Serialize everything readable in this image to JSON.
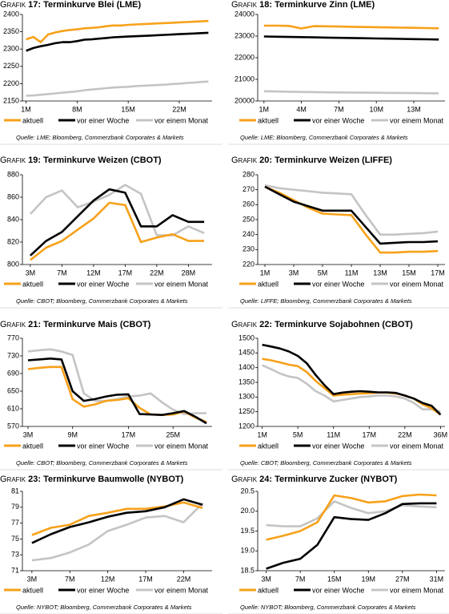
{
  "chart_data": [
    {
      "type": "line",
      "kicker": "Grafik",
      "title": "17: Terminkurve Blei (LME)",
      "source": "Quelle: LME; Bloomberg, Commerzbank Corporates & Markets",
      "categories": [
        "1M",
        null,
        null,
        null,
        null,
        null,
        null,
        "8M",
        null,
        null,
        null,
        null,
        null,
        null,
        "15M",
        null,
        null,
        null,
        null,
        null,
        null,
        "22M",
        null,
        null,
        null,
        null
      ],
      "ylim": [
        2150,
        2400
      ],
      "yticks": [
        2150,
        2200,
        2250,
        2300,
        2350,
        2400
      ],
      "series": [
        {
          "name": "aktuell",
          "color": "#f7a11a",
          "values": [
            2328,
            2335,
            2320,
            2342,
            2348,
            2352,
            2355,
            2357,
            2360,
            2361,
            2363,
            2366,
            2368,
            2368,
            2370,
            2371,
            2372,
            2373,
            2374,
            2375,
            2376,
            2377,
            2378,
            2379,
            2380,
            2381
          ]
        },
        {
          "name": "vor einer Woche",
          "color": "#000000",
          "values": [
            2295,
            2303,
            2308,
            2312,
            2317,
            2320,
            2320,
            2323,
            2327,
            2328,
            2330,
            2332,
            2334,
            2335,
            2336,
            2337,
            2338,
            2339,
            2340,
            2341,
            2342,
            2343,
            2344,
            2345,
            2346,
            2347
          ]
        },
        {
          "name": "vor einem Monat",
          "color": "#c4c4c4",
          "values": [
            2165,
            2166,
            2168,
            2170,
            2172,
            2174,
            2176,
            2178,
            2181,
            2183,
            2185,
            2187,
            2189,
            2190,
            2191,
            2193,
            2194,
            2195,
            2196,
            2197,
            2199,
            2200,
            2202,
            2203,
            2205,
            2206
          ]
        }
      ]
    },
    {
      "type": "line",
      "kicker": "Grafik",
      "title": "18: Terminkurve Zinn (LME)",
      "source": "Quelle: LME; Bloomberg, Commerzbank Corporates & Markets",
      "categories": [
        "1M",
        null,
        null,
        "4M",
        null,
        null,
        "7M",
        null,
        null,
        "10M",
        null,
        null,
        "13M",
        null,
        null
      ],
      "ylim": [
        20000,
        24000
      ],
      "yticks": [
        20000,
        21000,
        22000,
        23000,
        24000
      ],
      "series": [
        {
          "name": "aktuell",
          "color": "#f7a11a",
          "values": [
            23480,
            23480,
            23470,
            23350,
            23460,
            23450,
            23440,
            23430,
            23420,
            23410,
            23400,
            23390,
            23380,
            23370,
            23360
          ]
        },
        {
          "name": "vor einer Woche",
          "color": "#000000",
          "values": [
            22980,
            22970,
            22960,
            22950,
            22940,
            22930,
            22920,
            22910,
            22900,
            22890,
            22880,
            22870,
            22860,
            22850,
            22840
          ]
        },
        {
          "name": "vor einem Monat",
          "color": "#c4c4c4",
          "values": [
            20450,
            20440,
            20430,
            20420,
            20410,
            20400,
            20395,
            20390,
            20385,
            20380,
            20375,
            20370,
            20365,
            20360,
            20355
          ]
        }
      ]
    },
    {
      "type": "line",
      "kicker": "Grafik",
      "title": "19: Terminkurve Weizen (CBOT)",
      "source": "Quelle: CBOT; Bloomberg, Commerzbank Corporates & Markets",
      "categories": [
        "3M",
        null,
        "7M",
        null,
        "12M",
        null,
        "17M",
        null,
        "22M",
        null,
        "28M",
        null
      ],
      "ylim": [
        800,
        880
      ],
      "yticks": [
        800,
        820,
        840,
        860,
        880
      ],
      "series": [
        {
          "name": "aktuell",
          "color": "#f7a11a",
          "values": [
            804,
            815,
            821,
            831,
            841,
            855,
            853,
            820,
            824,
            827,
            821,
            821
          ]
        },
        {
          "name": "vor einer Woche",
          "color": "#000000",
          "values": [
            808,
            821,
            829,
            843,
            857,
            867,
            864,
            834,
            834,
            844,
            838,
            838
          ]
        },
        {
          "name": "vor einem Monat",
          "color": "#c4c4c4",
          "values": [
            845,
            860,
            866,
            851,
            856,
            862,
            871,
            863,
            826,
            826,
            834,
            828
          ]
        }
      ]
    },
    {
      "type": "line",
      "kicker": "Grafik",
      "title": "20: Terminkurve Weizen (LIFFE)",
      "source": "Quelle: LIFFE; Bloomberg, Commerzbank Corporates & Markets",
      "categories": [
        "1M",
        null,
        "3M",
        null,
        "5M",
        null,
        "11M",
        null,
        "13M",
        null,
        "15M",
        null,
        "17M"
      ],
      "ylim": [
        220,
        280
      ],
      "yticks": [
        220,
        230,
        240,
        250,
        260,
        270,
        280
      ],
      "series": [
        {
          "name": "aktuell",
          "color": "#f7a11a",
          "values": [
            272,
            268,
            263,
            258,
            254,
            253.5,
            253,
            240,
            228,
            228,
            228.5,
            228.5,
            229
          ]
        },
        {
          "name": "vor einer Woche",
          "color": "#000000",
          "values": [
            272,
            267,
            262,
            259,
            256,
            256,
            256,
            245,
            234,
            234.5,
            235,
            235,
            235.5
          ]
        },
        {
          "name": "vor einem Monat",
          "color": "#c4c4c4",
          "values": [
            273,
            271,
            270,
            269,
            268,
            267.5,
            267,
            253,
            240,
            240,
            240.5,
            241,
            242
          ]
        }
      ]
    },
    {
      "type": "line",
      "kicker": "Grafik",
      "title": "21: Terminkurve Mais (CBOT)",
      "source": "Quelle: CBOT; Bloomberg, Commerzbank Corporates & Markets",
      "categories": [
        "3M",
        null,
        null,
        null,
        "9M",
        null,
        null,
        null,
        null,
        "17M",
        null,
        null,
        null,
        "25M",
        null,
        null,
        null
      ],
      "ylim": [
        570,
        770
      ],
      "yticks": [
        570,
        610,
        650,
        690,
        730,
        770
      ],
      "series": [
        {
          "name": "aktuell",
          "color": "#f7a11a",
          "values": [
            700,
            703,
            705,
            705,
            632,
            615,
            620,
            628,
            630,
            634,
            612,
            597,
            596,
            597,
            604,
            590,
            580
          ]
        },
        {
          "name": "vor einer Woche",
          "color": "#000000",
          "values": [
            720,
            722,
            724,
            722,
            650,
            628,
            632,
            638,
            642,
            643,
            598,
            597,
            596,
            600,
            605,
            592,
            577
          ]
        },
        {
          "name": "vor einem Monat",
          "color": "#c4c4c4",
          "values": [
            740,
            743,
            745,
            740,
            732,
            645,
            628,
            628,
            632,
            638,
            640,
            645,
            625,
            608,
            598,
            600,
            600
          ]
        }
      ]
    },
    {
      "type": "line",
      "kicker": "Grafik",
      "title": "22: Terminkurve Sojabohnen (CBOT)",
      "source": "Quelle: CBOT; Bloomberg, Commerzbank Corporates & Markets",
      "categories": [
        "1M",
        null,
        null,
        null,
        "5M",
        null,
        null,
        null,
        "11M",
        null,
        null,
        null,
        "17M",
        null,
        null,
        null,
        "22M",
        null,
        null,
        null,
        "36M"
      ],
      "ylim": [
        1200,
        1500
      ],
      "yticks": [
        1200,
        1250,
        1300,
        1350,
        1400,
        1450,
        1500
      ],
      "series": [
        {
          "name": "aktuell",
          "color": "#f7a11a",
          "values": [
            1430,
            1425,
            1418,
            1410,
            1405,
            1385,
            1355,
            1330,
            1305,
            1308,
            1310,
            1312,
            1313,
            1315,
            1315,
            1312,
            1305,
            1295,
            1275,
            1262,
            1240
          ]
        },
        {
          "name": "vor einer Woche",
          "color": "#000000",
          "values": [
            1478,
            1472,
            1465,
            1455,
            1440,
            1415,
            1375,
            1340,
            1310,
            1315,
            1318,
            1320,
            1318,
            1316,
            1316,
            1314,
            1305,
            1295,
            1280,
            1270,
            1240
          ]
        },
        {
          "name": "vor einem Monat",
          "color": "#c4c4c4",
          "values": [
            1408,
            1395,
            1380,
            1370,
            1365,
            1345,
            1320,
            1305,
            1285,
            1290,
            1295,
            1300,
            1302,
            1305,
            1305,
            1302,
            1295,
            1280,
            1258,
            1258,
            1250
          ]
        }
      ]
    },
    {
      "type": "line",
      "kicker": "Grafik",
      "title": "23: Terminkurve Baumwolle (NYBOT)",
      "source": "Quelle: NYBOT; Bloomberg, Commerzbank Corporates & Markets",
      "categories": [
        "3M",
        null,
        "7M",
        null,
        "12M",
        null,
        "17M",
        null,
        "22M",
        null
      ],
      "ylim": [
        71,
        81
      ],
      "yticks": [
        71,
        73,
        75,
        77,
        79,
        81
      ],
      "series": [
        {
          "name": "aktuell",
          "color": "#f7a11a",
          "values": [
            75.5,
            76.4,
            76.8,
            77.9,
            78.3,
            78.8,
            78.8,
            79.1,
            79.6,
            78.9
          ]
        },
        {
          "name": "vor einer Woche",
          "color": "#000000",
          "values": [
            74.5,
            75.6,
            76.5,
            77.1,
            77.8,
            78.3,
            78.5,
            79.0,
            80.0,
            79.3
          ]
        },
        {
          "name": "vor einem Monat",
          "color": "#c4c4c4",
          "values": [
            72.3,
            72.6,
            73.3,
            74.3,
            76.0,
            76.8,
            77.7,
            77.9,
            77.1,
            79.5
          ]
        }
      ]
    },
    {
      "type": "line",
      "kicker": "Grafik",
      "title": "24: Terminkurve Zucker (NYBOT)",
      "source": "Quelle: NYBOT; Bloomberg, Commerzbank Corporates & Markets",
      "categories": [
        "3M",
        null,
        "7M",
        null,
        "15M",
        null,
        "19M",
        null,
        "27M",
        null,
        "31M"
      ],
      "ylim": [
        18.5,
        20.5
      ],
      "yticks": [
        18.5,
        {
          "value": 19,
          "label": "19.0"
        },
        19.5,
        {
          "value": 20,
          "label": "20.0"
        },
        20.5
      ],
      "series": [
        {
          "name": "aktuell",
          "color": "#f7a11a",
          "values": [
            19.28,
            19.38,
            19.5,
            19.72,
            20.4,
            20.33,
            20.22,
            20.25,
            20.38,
            20.42,
            20.4
          ]
        },
        {
          "name": "vor einer Woche",
          "color": "#000000",
          "values": [
            18.55,
            18.7,
            18.8,
            19.15,
            19.85,
            19.8,
            19.78,
            19.95,
            20.18,
            20.2,
            20.2
          ]
        },
        {
          "name": "vor einem Monat",
          "color": "#c4c4c4",
          "values": [
            19.65,
            19.62,
            19.62,
            19.82,
            20.25,
            20.08,
            19.95,
            20.0,
            20.15,
            20.12,
            20.1
          ]
        }
      ]
    }
  ]
}
